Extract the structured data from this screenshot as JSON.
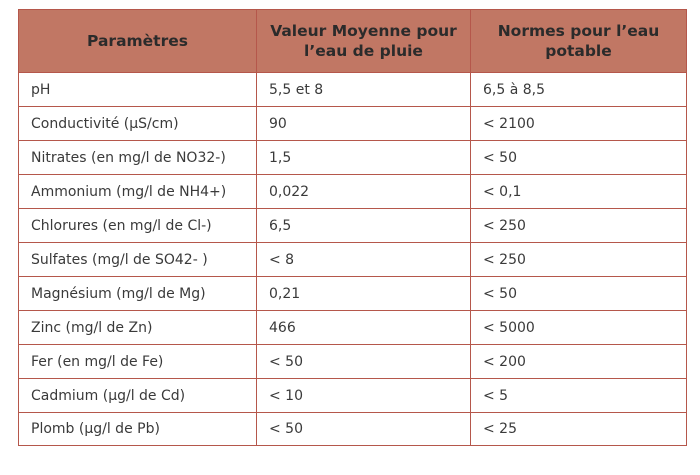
{
  "table": {
    "headers": [
      "Paramètres",
      "Valeur Moyenne pour l’eau de pluie",
      "Normes pour l’eau potable"
    ],
    "rows": [
      [
        "pH",
        "5,5 et 8",
        "6,5 à 8,5"
      ],
      [
        "Conductivité (µS/cm)",
        "90",
        "< 2100"
      ],
      [
        "Nitrates (en mg/l de NO32-)",
        "1,5",
        "< 50"
      ],
      [
        "Ammonium (mg/l de NH4+)",
        "0,022",
        "< 0,1"
      ],
      [
        "Chlorures (en mg/l de Cl-)",
        "6,5",
        "< 250"
      ],
      [
        "Sulfates (mg/l de SO42- )",
        "< 8",
        "< 250"
      ],
      [
        "Magnésium (mg/l de Mg)",
        "0,21",
        "< 50"
      ],
      [
        "Zinc (mg/l de Zn)",
        "466",
        "< 5000"
      ],
      [
        "Fer (en mg/l de Fe)",
        "< 50",
        "< 200"
      ],
      [
        "Cadmium (µg/l de Cd)",
        "< 10",
        "< 5"
      ],
      [
        "Plomb (µg/l de Pb)",
        "< 50",
        "< 25"
      ]
    ]
  },
  "colors": {
    "header_bg": "#c17764",
    "border": "#b5574b",
    "text": "#3a3a3a"
  }
}
